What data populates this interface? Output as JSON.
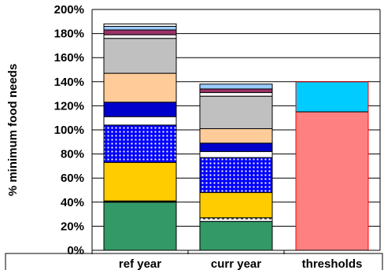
{
  "chart_data": {
    "type": "bar",
    "stacked": true,
    "ylabel": "% minimum food needs",
    "ylim": [
      0,
      200
    ],
    "yticks": [
      "0%",
      "20%",
      "40%",
      "60%",
      "80%",
      "100%",
      "120%",
      "140%",
      "160%",
      "180%",
      "200%"
    ],
    "grid": true,
    "categories": [
      "ref year",
      "curr year",
      "thresholds"
    ],
    "stacks": [
      {
        "category": "ref year",
        "segments": [
          {
            "value": 40,
            "color": "#339966",
            "fill": "solid"
          },
          {
            "value": 1,
            "color": "#000000",
            "fill": "solid"
          },
          {
            "value": 32,
            "color": "#ffcc00",
            "fill": "solid"
          },
          {
            "value": 31,
            "color": "#0000ff",
            "fill": "grid"
          },
          {
            "value": 7,
            "color": "#ffffff",
            "fill": "solid"
          },
          {
            "value": 12,
            "color": "#0000cc",
            "fill": "solid"
          },
          {
            "value": 24,
            "color": "#ffcc99",
            "fill": "solid"
          },
          {
            "value": 29,
            "color": "#c0c0c0",
            "fill": "solid"
          },
          {
            "value": 3,
            "color": "#ffffff",
            "fill": "solid"
          },
          {
            "value": 4,
            "color": "#993366",
            "fill": "solid"
          },
          {
            "value": 3,
            "color": "#99ccff",
            "fill": "solid"
          },
          {
            "value": 2,
            "color": "#ffffff",
            "fill": "solid"
          }
        ]
      },
      {
        "category": "curr year",
        "segments": [
          {
            "value": 24,
            "color": "#339966",
            "fill": "solid"
          },
          {
            "value": 3,
            "color": "#ffffff",
            "fill": "dashed"
          },
          {
            "value": 21,
            "color": "#ffcc00",
            "fill": "solid"
          },
          {
            "value": 29,
            "color": "#0000ff",
            "fill": "grid"
          },
          {
            "value": 5,
            "color": "#ffffff",
            "fill": "solid"
          },
          {
            "value": 7,
            "color": "#0000cc",
            "fill": "solid"
          },
          {
            "value": 12,
            "color": "#ffcc99",
            "fill": "solid"
          },
          {
            "value": 27,
            "color": "#c0c0c0",
            "fill": "solid"
          },
          {
            "value": 3,
            "color": "#ffffff",
            "fill": "solid"
          },
          {
            "value": 3,
            "color": "#993366",
            "fill": "solid"
          },
          {
            "value": 4,
            "color": "#99ccff",
            "fill": "solid"
          }
        ]
      },
      {
        "category": "thresholds",
        "segments": [
          {
            "value": 115,
            "color": "#ff8080",
            "fill": "solid"
          },
          {
            "value": 25,
            "color": "#00ccff",
            "fill": "solid"
          }
        ]
      }
    ]
  }
}
